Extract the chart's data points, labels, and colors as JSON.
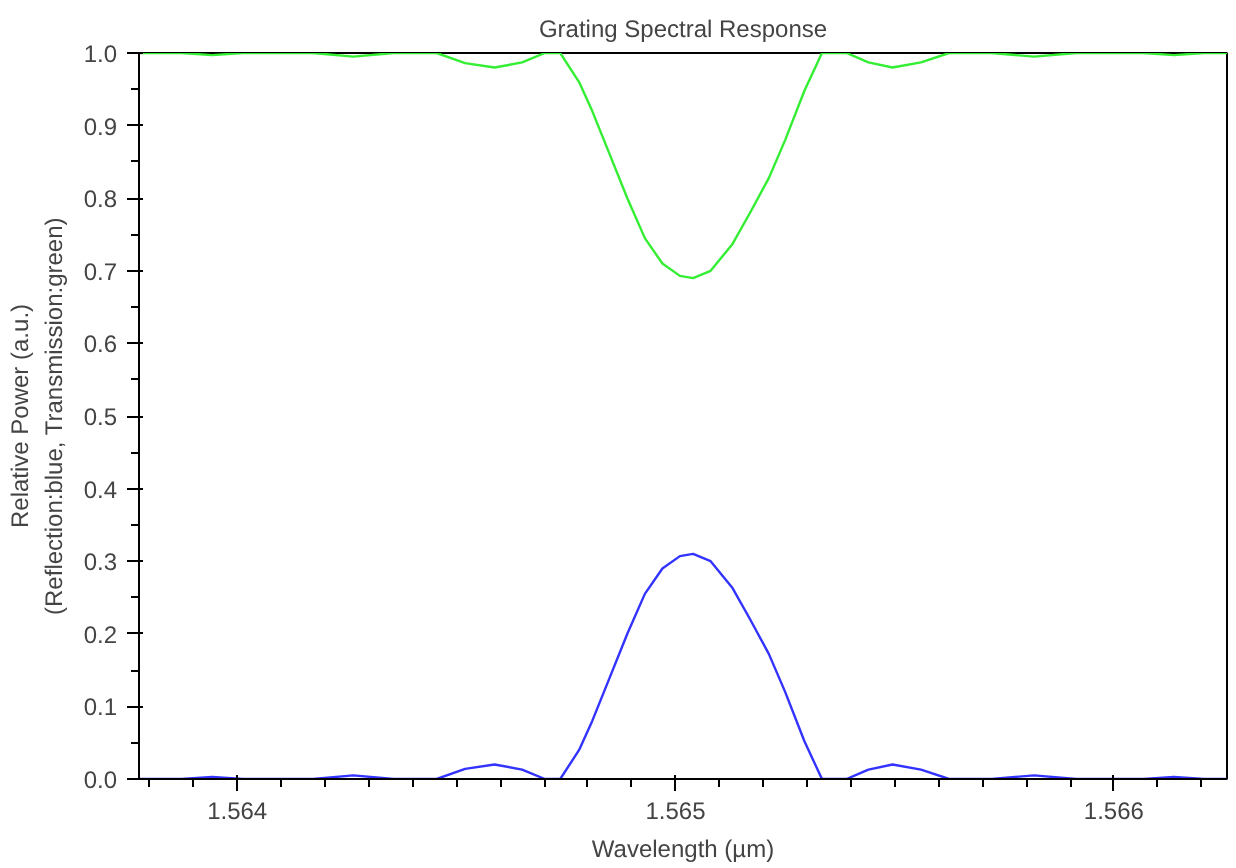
{
  "chart_data": {
    "type": "line",
    "title": "Grating Spectral Response",
    "xlabel": "Wavelength (µm)",
    "ylabel": "Relative Power (a.u.)\n(Reflection:blue, Transmission:green)",
    "x": [
      1.563776,
      1.563873,
      1.563943,
      1.564013,
      1.564173,
      1.564265,
      1.564357,
      1.564455,
      1.56452,
      1.564587,
      1.56465,
      1.564702,
      1.564737,
      1.56478,
      1.56481,
      1.56485,
      1.56489,
      1.56493,
      1.56497,
      1.56501,
      1.56504,
      1.56508,
      1.56513,
      1.56517,
      1.565213,
      1.56525,
      1.565294,
      1.565334,
      1.56539,
      1.56544,
      1.565495,
      1.56556,
      1.565624,
      1.565721,
      1.565818,
      1.565914,
      1.566068,
      1.566137,
      1.566205,
      1.566258
    ],
    "series": [
      {
        "color": "#3333ff",
        "values": [
          0,
          0,
          0.003,
          0,
          0,
          0.005,
          0,
          0,
          0.014,
          0.02,
          0.013,
          0,
          0,
          0.04,
          0.08,
          0.14,
          0.2,
          0.255,
          0.29,
          0.307,
          0.31,
          0.3,
          0.263,
          0.22,
          0.172,
          0.12,
          0.052,
          0,
          0,
          0.013,
          0.02,
          0.013,
          0,
          0,
          0.005,
          0,
          0,
          0.003,
          0,
          0
        ]
      },
      {
        "color": "#33ee33",
        "values": [
          1,
          1,
          0.997,
          1,
          1,
          0.995,
          1,
          1,
          0.986,
          0.98,
          0.987,
          1,
          1,
          0.96,
          0.92,
          0.86,
          0.8,
          0.745,
          0.71,
          0.693,
          0.69,
          0.7,
          0.737,
          0.78,
          0.828,
          0.88,
          0.948,
          1,
          1,
          0.987,
          0.98,
          0.987,
          1,
          1,
          0.995,
          1,
          1,
          0.997,
          1,
          1
        ]
      }
    ],
    "xlim": [
      1.563776,
      1.566258
    ],
    "xticks": [
      1.564,
      1.565,
      1.566
    ],
    "ylim": [
      0,
      1
    ],
    "yticks": [
      {
        "value": 0,
        "label": "0.0"
      },
      0.1,
      0.2,
      0.3,
      0.4,
      0.5,
      0.6,
      0.7,
      0.8,
      0.9,
      {
        "value": 1,
        "label": "1.0"
      }
    ],
    "grid": false,
    "marker": "none",
    "line_style": "solid"
  }
}
